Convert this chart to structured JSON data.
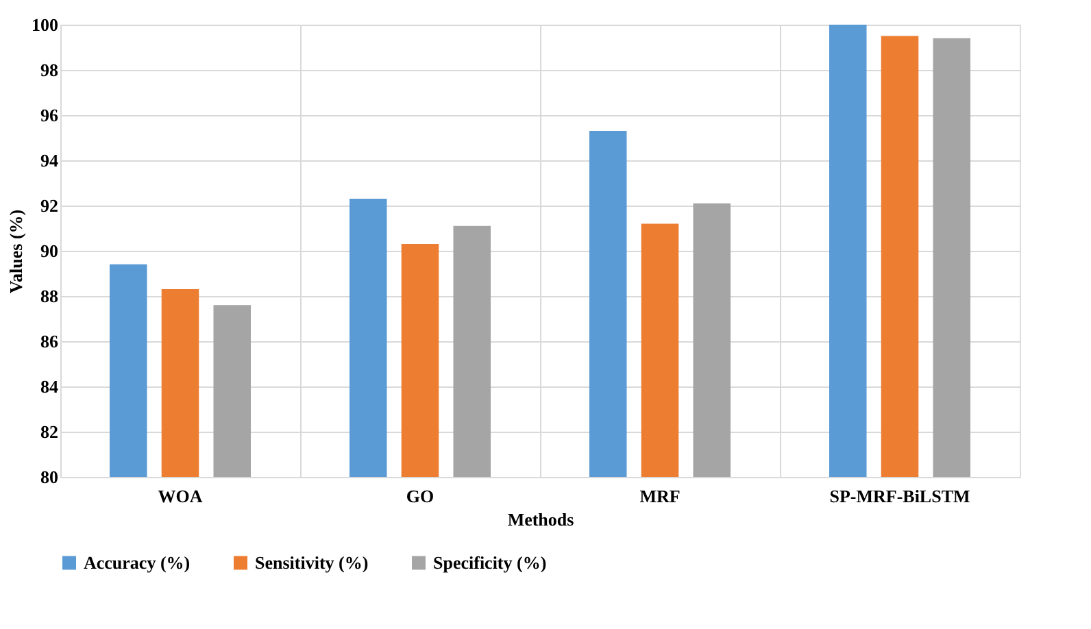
{
  "chart_data": {
    "type": "bar",
    "xlabel": "Methods",
    "ylabel": "Values (%)",
    "categories": [
      "WOA",
      "GO",
      "MRF",
      "SP-MRF-BiLSTM"
    ],
    "series": [
      {
        "name": "Accuracy (%)",
        "color": "#5b9bd5",
        "values": [
          89.4,
          92.3,
          95.3,
          100
        ]
      },
      {
        "name": "Sensitivity (%)",
        "color": "#ed7d31",
        "values": [
          88.3,
          90.3,
          91.2,
          99.5
        ]
      },
      {
        "name": "Specificity (%)",
        "color": "#a5a5a5",
        "values": [
          87.6,
          91.1,
          92.1,
          99.4
        ]
      }
    ],
    "ylim": [
      80,
      100
    ],
    "yticks": [
      80,
      82,
      84,
      86,
      88,
      90,
      92,
      94,
      96,
      98,
      100
    ],
    "grid": true,
    "legend": "bottom"
  }
}
